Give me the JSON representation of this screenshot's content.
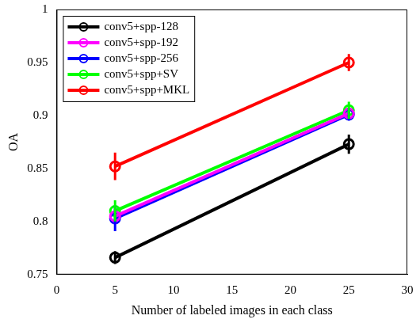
{
  "chart_data": {
    "type": "line",
    "x_label": "Number of labeled images in each class",
    "y_label": "OA",
    "x": [
      5,
      25
    ],
    "xlim": [
      0,
      30
    ],
    "xticks": [
      0,
      5,
      10,
      15,
      20,
      25,
      30
    ],
    "ylim": [
      0.75,
      1
    ],
    "yticks": [
      0.75,
      0.8,
      0.85,
      0.9,
      0.95,
      1
    ],
    "grid": false,
    "legend": "upper left",
    "marker": "circle",
    "series": [
      {
        "name": "conv5+spp-128",
        "color": "#000000",
        "values": [
          0.766,
          0.873
        ],
        "errors": [
          0.006,
          0.009
        ]
      },
      {
        "name": "conv5+spp-192",
        "color": "#ff00ff",
        "values": [
          0.805,
          0.902
        ],
        "errors": [
          0.008,
          0.006
        ]
      },
      {
        "name": "conv5+spp-256",
        "color": "#0000ff",
        "values": [
          0.803,
          0.901
        ],
        "errors": [
          0.012,
          0.006
        ]
      },
      {
        "name": "conv5+spp+SV",
        "color": "#00ff00",
        "values": [
          0.81,
          0.905
        ],
        "errors": [
          0.01,
          0.008
        ]
      },
      {
        "name": "conv5+spp+MKL",
        "color": "#ff0000",
        "values": [
          0.852,
          0.95
        ],
        "errors": [
          0.013,
          0.008
        ]
      }
    ]
  }
}
